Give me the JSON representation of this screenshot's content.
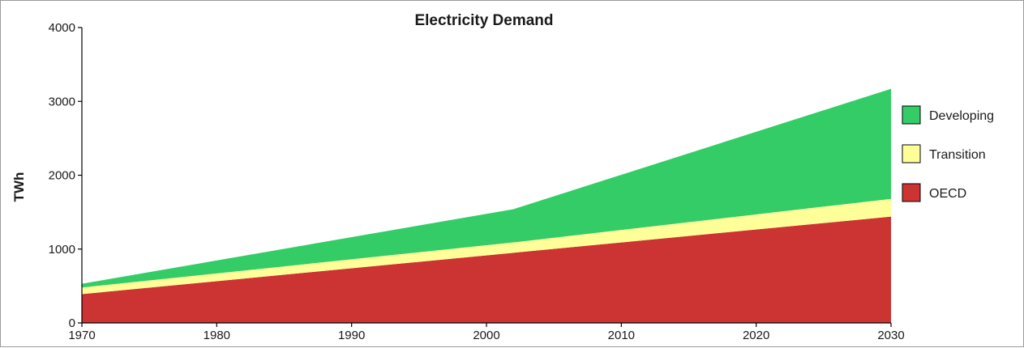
{
  "chart_data": {
    "type": "area",
    "stacked": true,
    "title": "Electricity Demand",
    "ylabel": "TWh",
    "xlabel": "",
    "xlim": [
      1970,
      2030
    ],
    "ylim": [
      0,
      4000
    ],
    "x_ticks": [
      1970,
      1980,
      1990,
      2000,
      2010,
      2020,
      2030
    ],
    "y_ticks": [
      0,
      1000,
      2000,
      3000,
      4000
    ],
    "x": [
      1970,
      2002,
      2030
    ],
    "series": [
      {
        "name": "OECD",
        "color": "#cc3333",
        "values": [
          390,
          950,
          1440
        ]
      },
      {
        "name": "Transition",
        "color": "#ffff99",
        "values": [
          90,
          140,
          240
        ]
      },
      {
        "name": "Developing",
        "color": "#33cc66",
        "values": [
          50,
          450,
          1490
        ]
      }
    ],
    "legend": {
      "position": "right",
      "order": [
        "Developing",
        "Transition",
        "OECD"
      ]
    },
    "grid": false
  }
}
